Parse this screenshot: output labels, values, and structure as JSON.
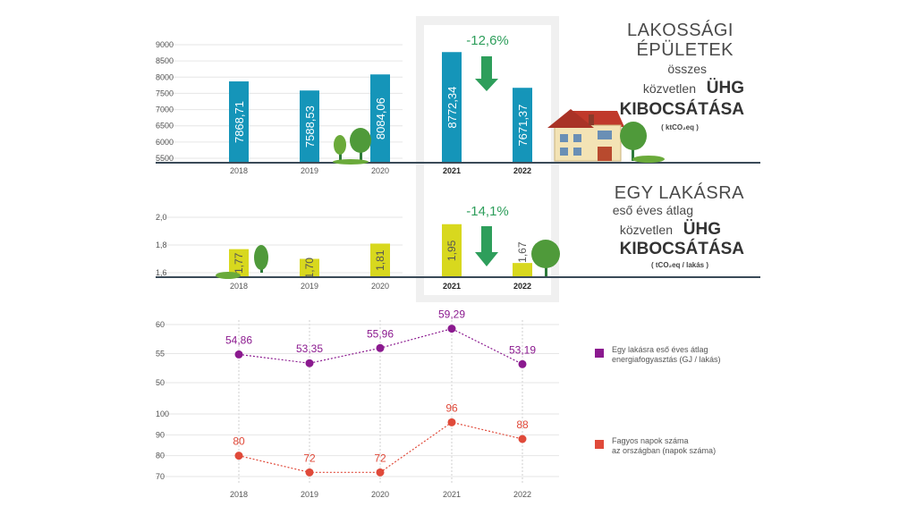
{
  "colors": {
    "emission_bar": "#1595b9",
    "per_flat_bar": "#d8d81e",
    "energy_line": "#8b1a8f",
    "frost_line": "#e04a3a",
    "arrow": "#2e9e5b",
    "highlight": "#f0f0f0"
  },
  "chart_data": [
    {
      "type": "bar",
      "categories": [
        "2018",
        "2019",
        "2020",
        "2021",
        "2022"
      ],
      "values": [
        7868.71,
        7588.53,
        8084.06,
        8772.34,
        7671.37
      ],
      "value_labels": [
        "7868,71",
        "7588,53",
        "8084,06",
        "8772,34",
        "7671,37"
      ],
      "y_ticks": [
        "9000",
        "8500",
        "8000",
        "7500",
        "7000",
        "6500",
        "6000",
        "5500"
      ],
      "ylim": [
        5500,
        9000
      ],
      "change_label": "-12,6%",
      "title_lines": [
        "LAKOSSÁGI",
        "ÉPÜLETEK",
        "összes",
        "közvetlen",
        "ÜHG",
        "KIBOCSÁTÁSA"
      ],
      "unit": "( ktCO₂eq )"
    },
    {
      "type": "bar",
      "categories": [
        "2018",
        "2019",
        "2020",
        "2021",
        "2022"
      ],
      "values": [
        1.77,
        1.7,
        1.81,
        1.95,
        1.67
      ],
      "value_labels": [
        "1,77",
        "1,70",
        "1,81",
        "1,95",
        "1,67"
      ],
      "y_ticks": [
        "2,0",
        "1,8",
        "1,6"
      ],
      "ylim": [
        1.6,
        2.0
      ],
      "change_label": "-14,1%",
      "title_lines": [
        "EGY LAKÁSRA",
        "eső éves átlag",
        "közvetlen",
        "ÜHG",
        "KIBOCSÁTÁSA"
      ],
      "unit": "( tCO₂eq / lakás )"
    },
    {
      "type": "line",
      "x": [
        "2018",
        "2019",
        "2020",
        "2021",
        "2022"
      ],
      "series": [
        {
          "name": "Egy lakásra eső éves átlag energiafogyasztás (GJ / lakás)",
          "legend_lines": [
            "Egy lakásra eső éves átlag",
            "energiafogyasztás (GJ / lakás)"
          ],
          "values": [
            54.86,
            53.35,
            55.96,
            59.29,
            53.19
          ],
          "value_labels": [
            "54,86",
            "53,35",
            "55,96",
            "59,29",
            "53,19"
          ],
          "y_ticks": [
            "60",
            "55",
            "50"
          ],
          "ylim": [
            50,
            60
          ]
        },
        {
          "name": "Fagyos napok száma az országban (napok száma)",
          "legend_lines": [
            "Fagyos napok száma",
            "az országban (napok száma)"
          ],
          "values": [
            80,
            72,
            72,
            96,
            88
          ],
          "value_labels": [
            "80",
            "72",
            "72",
            "96",
            "88"
          ],
          "y_ticks": [
            "100",
            "90",
            "80",
            "70"
          ],
          "ylim": [
            70,
            100
          ]
        }
      ]
    }
  ]
}
